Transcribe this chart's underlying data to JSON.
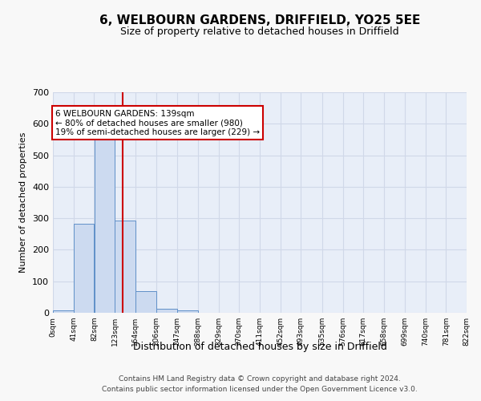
{
  "title": "6, WELBOURN GARDENS, DRIFFIELD, YO25 5EE",
  "subtitle": "Size of property relative to detached houses in Driffield",
  "xlabel": "Distribution of detached houses by size in Driffield",
  "ylabel": "Number of detached properties",
  "footer_line1": "Contains HM Land Registry data © Crown copyright and database right 2024.",
  "footer_line2": "Contains public sector information licensed under the Open Government Licence v3.0.",
  "bar_color": "#ccdaf0",
  "bar_edge_color": "#6090c8",
  "vline_color": "#cc0000",
  "vline_x": 139,
  "property_size": 139,
  "annotation_text": "6 WELBOURN GARDENS: 139sqm\n← 80% of detached houses are smaller (980)\n19% of semi-detached houses are larger (229) →",
  "annotation_box_color": "#ffffff",
  "annotation_box_edge": "#cc0000",
  "bin_edges": [
    0,
    41,
    82,
    123,
    164,
    206,
    247,
    288,
    329,
    370,
    411,
    452,
    493,
    535,
    576,
    617,
    658,
    699,
    740,
    781,
    822
  ],
  "bin_counts": [
    7,
    283,
    560,
    293,
    70,
    13,
    8,
    0,
    0,
    0,
    0,
    0,
    0,
    0,
    0,
    0,
    0,
    0,
    0,
    0
  ],
  "ylim": [
    0,
    700
  ],
  "xlim": [
    0,
    822
  ],
  "grid_color": "#d0d8e8",
  "background_color": "#e8eef8",
  "fig_background": "#f8f8f8"
}
